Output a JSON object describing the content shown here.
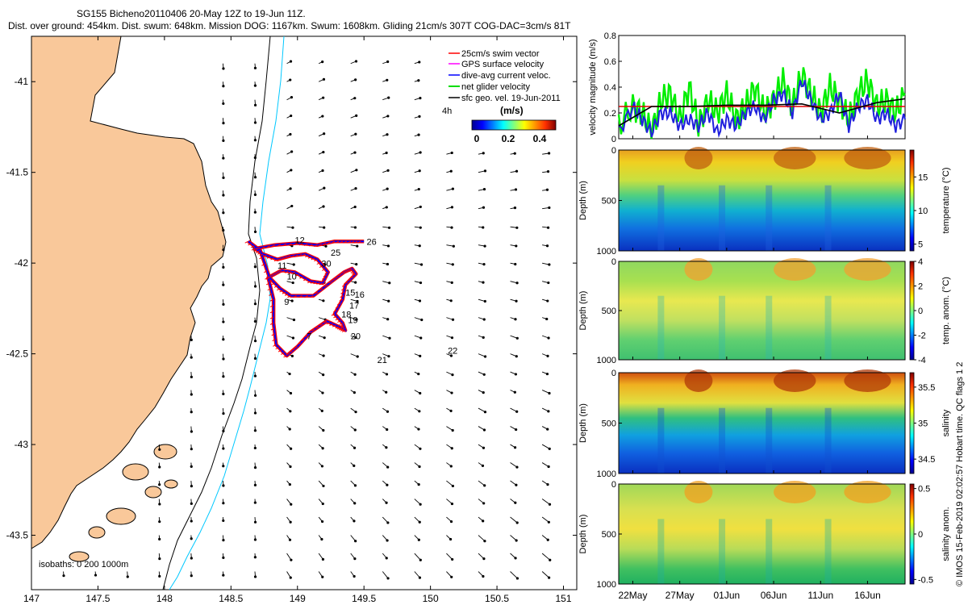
{
  "figure": {
    "title_line1": "SG155 Bicheno20110406 20-May 12Z to 19-Jun 11Z.",
    "title_line2": "Dist. over ground: 454km. Dist. swum: 648km. Mission DOG: 1167km. Swum: 1608km. Gliding 21cm/s 307T COG-DAC=3cm/s 81T",
    "footer": "© IMOS 15-Feb-2019 02:02:57 Hobart time. QC flags 1  2",
    "colors": {
      "land": "#f9c89a",
      "isobath_200": "#000000",
      "isobath_1000": "#00c8ff",
      "swim": "#ff0000",
      "gps": "#ff00ff",
      "dac": "#0000ff",
      "net": "#00dd00",
      "geo": "#000000",
      "mag_green": "#00ee00",
      "mag_blue": "#2020dd",
      "mag_red": "#e00000"
    }
  },
  "map": {
    "xticks": [
      "147",
      "147.5",
      "148",
      "148.5",
      "149",
      "149.5",
      "150",
      "150.5",
      "151"
    ],
    "yticks": [
      "-41",
      "-41.5",
      "-42",
      "-42.5",
      "-43",
      "-43.5"
    ],
    "isobaths_label": "isobaths: 0   200  1000m",
    "legend": [
      {
        "label": "25cm/s swim vector",
        "color": "#ff0000"
      },
      {
        "label": "GPS surface velocity",
        "color": "#ff00ff"
      },
      {
        "label": "dive-avg current veloc.",
        "color": "#0000ff"
      },
      {
        "label": "net glider velocity",
        "color": "#00dd00"
      },
      {
        "label": "sfc geo. vel. 19-Jun-2011",
        "color": "#000000"
      }
    ],
    "colorbar": {
      "label": "(m/s)",
      "ticks": [
        "0",
        "0.2",
        "0.4"
      ],
      "extra_label": "4h"
    },
    "day_labels": [
      {
        "t": "26",
        "lon": 149.52,
        "lat": -41.9
      },
      {
        "t": "25",
        "lon": 149.25,
        "lat": -41.96
      },
      {
        "t": "12",
        "lon": 148.98,
        "lat": -41.89
      },
      {
        "t": "30",
        "lon": 149.18,
        "lat": -42.02
      },
      {
        "t": "11",
        "lon": 148.85,
        "lat": -42.03
      },
      {
        "t": "10",
        "lon": 148.92,
        "lat": -42.09
      },
      {
        "t": "15",
        "lon": 149.36,
        "lat": -42.18
      },
      {
        "t": "16",
        "lon": 149.43,
        "lat": -42.19
      },
      {
        "t": "9",
        "lon": 148.9,
        "lat": -42.23
      },
      {
        "t": "17",
        "lon": 149.39,
        "lat": -42.25
      },
      {
        "t": "18",
        "lon": 149.33,
        "lat": -42.3
      },
      {
        "t": "19",
        "lon": 149.38,
        "lat": -42.33
      },
      {
        "t": "7",
        "lon": 149.07,
        "lat": -42.42
      },
      {
        "t": "20",
        "lon": 149.4,
        "lat": -42.42
      },
      {
        "t": "21",
        "lon": 149.6,
        "lat": -42.55
      },
      {
        "t": "22",
        "lon": 150.13,
        "lat": -42.5
      }
    ]
  },
  "velocity_panel": {
    "ylabel": "velocity magnitude (m/s)",
    "yticks": [
      "0",
      "0.2",
      "0.4",
      "0.6",
      "0.8"
    ]
  },
  "section_panels": [
    {
      "id": "temperature",
      "clabel": "temperature (°C)",
      "cticks": [
        "5",
        "10",
        "15"
      ],
      "ylabel": "Depth (m)",
      "yticks": [
        "0",
        "500",
        "1000"
      ]
    },
    {
      "id": "temp_anom",
      "clabel": "temp. anom. (°C)",
      "cticks": [
        "-4",
        "-2",
        "0",
        "2",
        "4"
      ],
      "ylabel": "Depth (m)",
      "yticks": [
        "0",
        "500",
        "1000"
      ]
    },
    {
      "id": "salinity",
      "clabel": "salinity",
      "cticks": [
        "34.5",
        "35",
        "35.5"
      ],
      "ylabel": "Depth (m)",
      "yticks": [
        "0",
        "500",
        "1000"
      ]
    },
    {
      "id": "sal_anom",
      "clabel": "salinity anom.",
      "cticks": [
        "-0.5",
        "0",
        "0.5"
      ],
      "ylabel": "Depth (m)",
      "yticks": [
        "0",
        "500",
        "1000"
      ]
    }
  ],
  "time_axis": {
    "labels": [
      "22May",
      "27May",
      "01Jun",
      "06Jun",
      "11Jun",
      "16Jun"
    ]
  },
  "chart_data": [
    {
      "type": "scatter",
      "subtype": "map",
      "title": "SG155 Bicheno20110406 20-May 12Z to 19-Jun 11Z.",
      "xlim": [
        147,
        151.1
      ],
      "ylim": [
        -43.8,
        -40.75
      ],
      "xticks": [
        147,
        147.5,
        148,
        148.5,
        149,
        149.5,
        150,
        150.5,
        151
      ],
      "yticks": [
        -41,
        -41.5,
        -42,
        -42.5,
        -43,
        -43.5
      ],
      "legend_position": "top-right",
      "glider_track": [
        [
          148.63,
          -41.88
        ],
        [
          148.72,
          -41.93
        ],
        [
          148.79,
          -42.08
        ],
        [
          148.87,
          -42.14
        ],
        [
          148.95,
          -42.18
        ],
        [
          149.12,
          -42.18
        ],
        [
          149.26,
          -42.1
        ],
        [
          149.35,
          -42.05
        ],
        [
          149.41,
          -42.03
        ],
        [
          149.44,
          -42.06
        ],
        [
          149.36,
          -42.12
        ],
        [
          149.34,
          -42.2
        ],
        [
          149.28,
          -42.28
        ],
        [
          149.34,
          -42.33
        ],
        [
          149.36,
          -42.37
        ],
        [
          149.31,
          -42.35
        ],
        [
          149.22,
          -42.32
        ],
        [
          149.1,
          -42.38
        ],
        [
          149.0,
          -42.46
        ],
        [
          148.92,
          -42.51
        ],
        [
          148.84,
          -42.45
        ],
        [
          148.82,
          -42.33
        ],
        [
          148.82,
          -42.2
        ],
        [
          148.78,
          -42.08
        ],
        [
          148.88,
          -42.04
        ],
        [
          148.98,
          -42.05
        ],
        [
          149.1,
          -42.1
        ],
        [
          149.19,
          -42.11
        ],
        [
          149.23,
          -42.05
        ],
        [
          149.15,
          -41.98
        ],
        [
          149.06,
          -41.95
        ],
        [
          148.95,
          -41.96
        ],
        [
          148.85,
          -41.98
        ],
        [
          148.74,
          -41.95
        ],
        [
          148.68,
          -41.92
        ],
        [
          148.83,
          -41.9
        ],
        [
          149.0,
          -41.89
        ],
        [
          149.15,
          -41.9
        ],
        [
          149.28,
          -41.88
        ],
        [
          149.4,
          -41.88
        ],
        [
          149.5,
          -41.88
        ]
      ],
      "surface_current_vectors": "quiver field on a regular grid, flow generally southward near shelf and south-eastward offshore"
    },
    {
      "type": "line",
      "ylabel": "velocity magnitude (m/s)",
      "ylim": [
        0,
        0.8
      ],
      "x_unit": "day (22 = 22 May)",
      "series": [
        {
          "name": "net glider velocity",
          "color": "#00ee00",
          "x": [
            20.5,
            22,
            23,
            24,
            25,
            26,
            27,
            28,
            29,
            30,
            31,
            32,
            33,
            34,
            35,
            36,
            37,
            38,
            39,
            40,
            41,
            42,
            43,
            44,
            45,
            46,
            47,
            48,
            49,
            50,
            51
          ],
          "y": [
            0.1,
            0.25,
            0.2,
            0.05,
            0.3,
            0.35,
            0.15,
            0.4,
            0.1,
            0.3,
            0.2,
            0.35,
            0.15,
            0.25,
            0.4,
            0.2,
            0.3,
            0.45,
            0.25,
            0.5,
            0.35,
            0.2,
            0.4,
            0.3,
            0.15,
            0.35,
            0.45,
            0.25,
            0.3,
            0.2,
            0.35
          ]
        },
        {
          "name": "dive-avg current veloc.",
          "color": "#2020dd",
          "x": [
            20.5,
            22,
            23,
            24,
            25,
            26,
            27,
            28,
            29,
            30,
            31,
            32,
            33,
            34,
            35,
            36,
            37,
            38,
            39,
            40,
            41,
            42,
            43,
            44,
            45,
            46,
            47,
            48,
            49,
            50,
            51
          ],
          "y": [
            0.05,
            0.25,
            0.15,
            0.05,
            0.2,
            0.2,
            0.1,
            0.15,
            0.1,
            0.2,
            0.05,
            0.15,
            0.1,
            0.2,
            0.25,
            0.15,
            0.3,
            0.35,
            0.2,
            0.45,
            0.3,
            0.15,
            0.2,
            0.35,
            0.1,
            0.25,
            0.3,
            0.15,
            0.2,
            0.1,
            0.15
          ]
        },
        {
          "name": "25cm/s swim vector",
          "color": "#e00000",
          "x": [
            20.5,
            51
          ],
          "y": [
            0.25,
            0.25
          ]
        },
        {
          "name": "sfc geo. vel. 19-Jun-2011",
          "color": "#000000",
          "x": [
            20.5,
            24,
            28,
            32,
            36,
            40,
            44,
            48,
            51
          ],
          "y": [
            0.1,
            0.25,
            0.25,
            0.26,
            0.26,
            0.27,
            0.2,
            0.28,
            0.31
          ]
        }
      ]
    },
    {
      "type": "heatmap",
      "title": "temperature (°C)",
      "ylabel": "Depth (m)",
      "ylim": [
        1000,
        0
      ],
      "clim": [
        4,
        19
      ],
      "x_categories": [
        "22May",
        "27May",
        "01Jun",
        "06Jun",
        "11Jun",
        "16Jun"
      ],
      "profile_depths": [
        0,
        100,
        200,
        300,
        400,
        500,
        600,
        700,
        800,
        900,
        1000
      ],
      "profile_values": [
        18,
        16,
        15,
        14,
        12,
        10,
        8,
        7,
        6,
        5,
        4.5
      ]
    },
    {
      "type": "heatmap",
      "title": "temp. anom. (°C)",
      "ylabel": "Depth (m)",
      "ylim": [
        1000,
        0
      ],
      "clim": [
        -4,
        4
      ],
      "x_categories": [
        "22May",
        "27May",
        "01Jun",
        "06Jun",
        "11Jun",
        "16Jun"
      ],
      "profile_depths": [
        0,
        250,
        500,
        750,
        1000
      ],
      "profile_values": [
        0.5,
        0,
        1,
        -0.5,
        -0.5
      ]
    },
    {
      "type": "heatmap",
      "title": "salinity",
      "ylabel": "Depth (m)",
      "ylim": [
        1000,
        0
      ],
      "clim": [
        34.3,
        35.7
      ],
      "x_categories": [
        "22May",
        "27May",
        "01Jun",
        "06Jun",
        "11Jun",
        "16Jun"
      ],
      "profile_depths": [
        0,
        100,
        200,
        300,
        400,
        500,
        600,
        700,
        800,
        900,
        1000
      ],
      "profile_values": [
        35.6,
        35.4,
        35.2,
        35.1,
        35.0,
        34.9,
        34.7,
        34.6,
        34.5,
        34.45,
        34.4
      ]
    },
    {
      "type": "heatmap",
      "title": "salinity anom.",
      "ylabel": "Depth (m)",
      "ylim": [
        1000,
        0
      ],
      "clim": [
        -0.5,
        0.5
      ],
      "x_categories": [
        "22May",
        "27May",
        "01Jun",
        "06Jun",
        "11Jun",
        "16Jun"
      ],
      "profile_depths": [
        0,
        250,
        500,
        750,
        1000
      ],
      "profile_values": [
        0.1,
        0.05,
        0.15,
        -0.05,
        -0.1
      ]
    }
  ]
}
